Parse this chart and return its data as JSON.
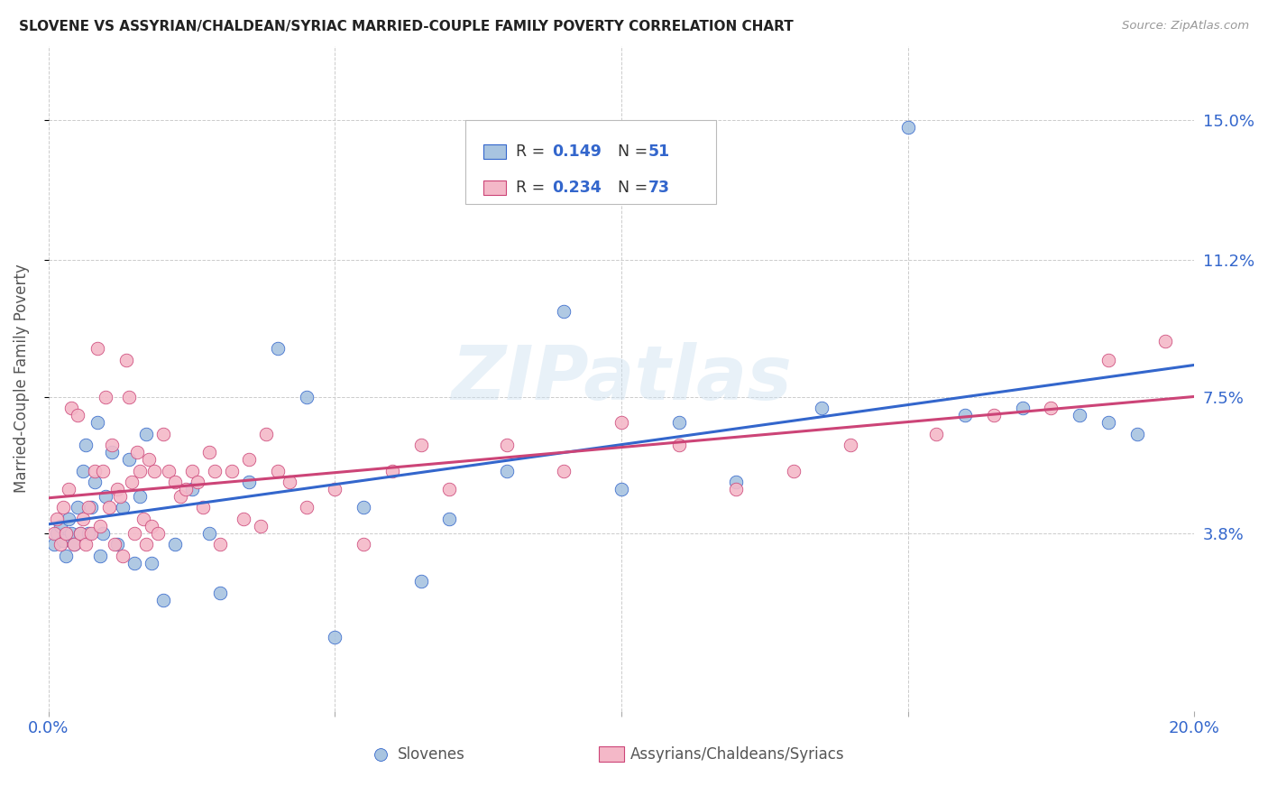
{
  "title": "SLOVENE VS ASSYRIAN/CHALDEAN/SYRIAC MARRIED-COUPLE FAMILY POVERTY CORRELATION CHART",
  "source": "Source: ZipAtlas.com",
  "ylabel": "Married-Couple Family Poverty",
  "xlim": [
    0.0,
    20.0
  ],
  "ylim": [
    -1.0,
    17.0
  ],
  "y_tick_values": [
    3.8,
    7.5,
    11.2,
    15.0
  ],
  "y_tick_labels": [
    "3.8%",
    "7.5%",
    "11.2%",
    "15.0%"
  ],
  "legend_blue_label": "Slovenes",
  "legend_pink_label": "Assyrians/Chaldeans/Syriacs",
  "blue_color": "#a8c4e0",
  "pink_color": "#f4b8c8",
  "blue_line_color": "#3366cc",
  "pink_line_color": "#cc4477",
  "watermark_text": "ZIPatlas",
  "background_color": "#ffffff",
  "slovene_x": [
    0.1,
    0.15,
    0.2,
    0.25,
    0.3,
    0.35,
    0.4,
    0.45,
    0.5,
    0.55,
    0.6,
    0.65,
    0.7,
    0.75,
    0.8,
    0.85,
    0.9,
    0.95,
    1.0,
    1.1,
    1.2,
    1.3,
    1.4,
    1.5,
    1.6,
    1.7,
    1.8,
    2.0,
    2.2,
    2.5,
    2.8,
    3.0,
    3.5,
    4.0,
    4.5,
    5.0,
    5.5,
    6.5,
    7.0,
    8.0,
    9.0,
    10.0,
    11.0,
    12.0,
    13.5,
    15.0,
    16.0,
    17.0,
    18.0,
    18.5,
    19.0
  ],
  "slovene_y": [
    3.5,
    3.8,
    4.0,
    3.6,
    3.2,
    4.2,
    3.8,
    3.5,
    4.5,
    3.8,
    5.5,
    6.2,
    3.8,
    4.5,
    5.2,
    6.8,
    3.2,
    3.8,
    4.8,
    6.0,
    3.5,
    4.5,
    5.8,
    3.0,
    4.8,
    6.5,
    3.0,
    2.0,
    3.5,
    5.0,
    3.8,
    2.2,
    5.2,
    8.8,
    7.5,
    1.0,
    4.5,
    2.5,
    4.2,
    5.5,
    9.8,
    5.0,
    6.8,
    5.2,
    7.2,
    14.8,
    7.0,
    7.2,
    7.0,
    6.8,
    6.5
  ],
  "assyrian_x": [
    0.1,
    0.15,
    0.2,
    0.25,
    0.3,
    0.35,
    0.4,
    0.45,
    0.5,
    0.55,
    0.6,
    0.65,
    0.7,
    0.75,
    0.8,
    0.85,
    0.9,
    0.95,
    1.0,
    1.05,
    1.1,
    1.15,
    1.2,
    1.25,
    1.3,
    1.35,
    1.4,
    1.45,
    1.5,
    1.55,
    1.6,
    1.65,
    1.7,
    1.75,
    1.8,
    1.85,
    1.9,
    2.0,
    2.1,
    2.2,
    2.3,
    2.4,
    2.5,
    2.6,
    2.7,
    2.8,
    2.9,
    3.0,
    3.2,
    3.4,
    3.5,
    3.7,
    3.8,
    4.0,
    4.2,
    4.5,
    5.0,
    5.5,
    6.0,
    6.5,
    7.0,
    8.0,
    9.0,
    10.0,
    11.0,
    12.0,
    13.0,
    14.0,
    15.5,
    16.5,
    17.5,
    18.5,
    19.5
  ],
  "assyrian_y": [
    3.8,
    4.2,
    3.5,
    4.5,
    3.8,
    5.0,
    7.2,
    3.5,
    7.0,
    3.8,
    4.2,
    3.5,
    4.5,
    3.8,
    5.5,
    8.8,
    4.0,
    5.5,
    7.5,
    4.5,
    6.2,
    3.5,
    5.0,
    4.8,
    3.2,
    8.5,
    7.5,
    5.2,
    3.8,
    6.0,
    5.5,
    4.2,
    3.5,
    5.8,
    4.0,
    5.5,
    3.8,
    6.5,
    5.5,
    5.2,
    4.8,
    5.0,
    5.5,
    5.2,
    4.5,
    6.0,
    5.5,
    3.5,
    5.5,
    4.2,
    5.8,
    4.0,
    6.5,
    5.5,
    5.2,
    4.5,
    5.0,
    3.5,
    5.5,
    6.2,
    5.0,
    6.2,
    5.5,
    6.8,
    6.2,
    5.0,
    5.5,
    6.2,
    6.5,
    7.0,
    7.2,
    8.5,
    9.0
  ]
}
